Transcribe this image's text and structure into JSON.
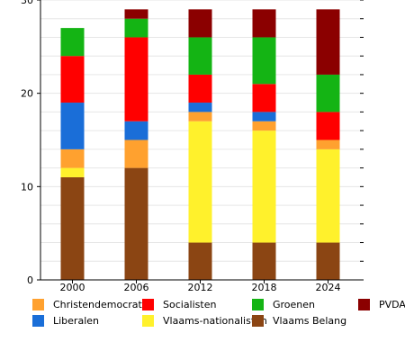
{
  "chart_data": {
    "type": "bar",
    "stacked": true,
    "categories": [
      "2000",
      "2006",
      "2012",
      "2018",
      "2024"
    ],
    "ylim": [
      0,
      30
    ],
    "yticks": [
      "0",
      "10",
      "20",
      "30"
    ],
    "grid": true,
    "legend_position": "bottom",
    "series": [
      {
        "name": "Vlaams Belang",
        "color": "#8B4513",
        "values": [
          11,
          12,
          4,
          4,
          4
        ]
      },
      {
        "name": "Vlaams-nationalisten",
        "color": "#FFF12C",
        "values": [
          1,
          0,
          13,
          12,
          10
        ]
      },
      {
        "name": "Christendemocraten",
        "color": "#FFA12F",
        "values": [
          2,
          3,
          1,
          1,
          1
        ]
      },
      {
        "name": "Liberalen",
        "color": "#1A6ED8",
        "values": [
          5,
          2,
          1,
          1,
          0
        ]
      },
      {
        "name": "Socialisten",
        "color": "#FF0000",
        "values": [
          5,
          9,
          3,
          3,
          3
        ]
      },
      {
        "name": "Groenen",
        "color": "#14B414",
        "values": [
          3,
          2,
          4,
          5,
          4
        ]
      },
      {
        "name": "PVDA",
        "color": "#8B0000",
        "values": [
          0,
          1,
          3,
          3,
          7
        ]
      }
    ],
    "legend": [
      {
        "name": "Christendemocraten",
        "color": "#FFA12F"
      },
      {
        "name": "Socialisten",
        "color": "#FF0000"
      },
      {
        "name": "Groenen",
        "color": "#14B414"
      },
      {
        "name": "PVDA",
        "color": "#8B0000"
      },
      {
        "name": "Liberalen",
        "color": "#1A6ED8"
      },
      {
        "name": "Vlaams-nationalisten",
        "color": "#FFF12C"
      },
      {
        "name": "Vlaams Belang",
        "color": "#8B4513"
      }
    ]
  }
}
